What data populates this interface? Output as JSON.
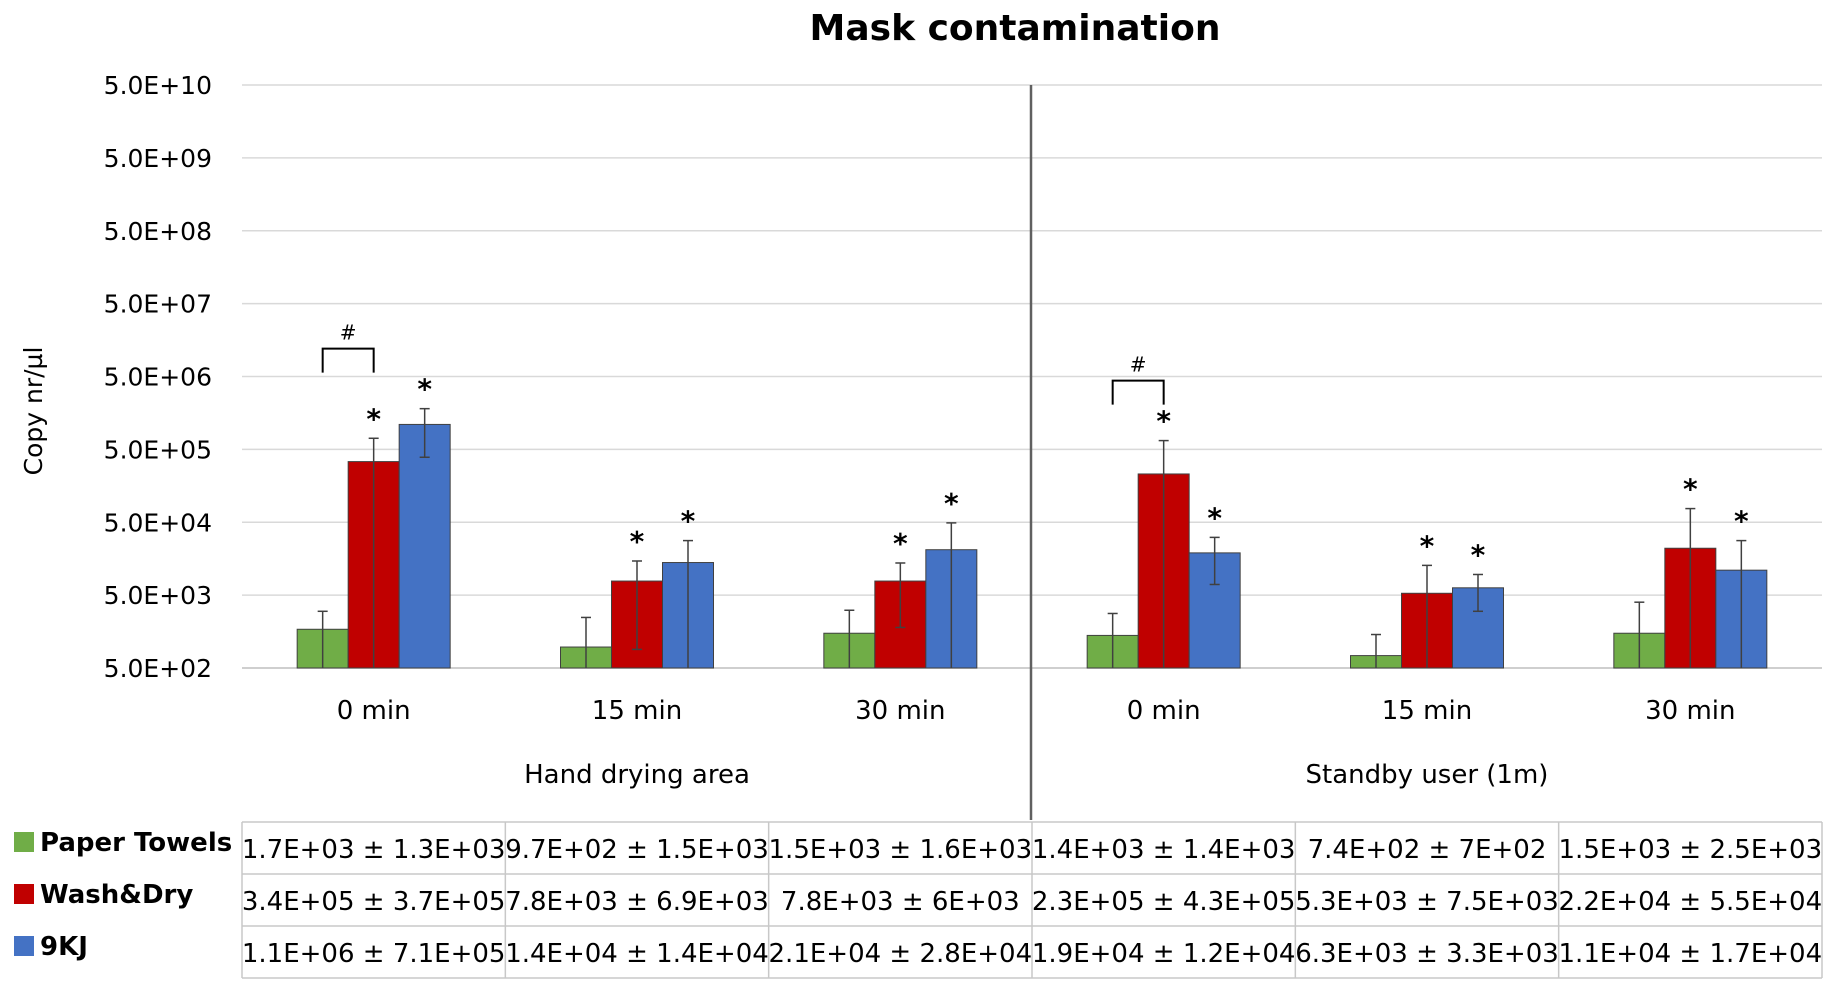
{
  "chart_data": {
    "type": "bar",
    "title": "Mask contamination",
    "ylabel": "Copy nr/µl",
    "xlabel": "",
    "yscale": "log",
    "ylim": [
      500,
      50000000000
    ],
    "yticks": [
      500,
      5000,
      50000,
      500000,
      5000000,
      50000000,
      500000000,
      5000000000,
      50000000000
    ],
    "ytick_labels": [
      "5.0E+02",
      "5.0E+03",
      "5.0E+04",
      "5.0E+05",
      "5.0E+06",
      "5.0E+07",
      "5.0E+08",
      "5.0E+09",
      "5.0E+10"
    ],
    "groups": [
      {
        "label": "Hand drying area",
        "categories": [
          "0 min",
          "15 min",
          "30 min"
        ]
      },
      {
        "label": "Standby user (1m)",
        "categories": [
          "0 min",
          "15 min",
          "30 min"
        ]
      }
    ],
    "series": [
      {
        "name": "Paper Towels",
        "color": "#70AD47",
        "values": [
          1700,
          970,
          1500,
          1400,
          740,
          1500
        ],
        "errors": [
          1300,
          1500,
          1600,
          1400,
          700,
          2500
        ],
        "table_text": [
          "1.7E+03 ± 1.3E+03",
          "9.7E+02 ± 1.5E+03",
          "1.5E+03 ± 1.6E+03",
          "1.4E+03 ± 1.4E+03",
          "7.4E+02 ± 7E+02",
          "1.5E+03 ± 2.5E+03"
        ],
        "significant": [
          false,
          false,
          false,
          false,
          false,
          false
        ]
      },
      {
        "name": "Wash&Dry",
        "color": "#C00000",
        "values": [
          340000,
          7800,
          7800,
          230000,
          5300,
          22000
        ],
        "errors": [
          370000,
          6900,
          6000,
          430000,
          7500,
          55000
        ],
        "table_text": [
          "3.4E+05 ± 3.7E+05",
          "7.8E+03 ± 6.9E+03",
          "7.8E+03 ± 6E+03",
          "2.3E+05 ± 4.3E+05",
          "5.3E+03 ± 7.5E+03",
          "2.2E+04 ± 5.5E+04"
        ],
        "significant": [
          true,
          true,
          true,
          true,
          true,
          true
        ]
      },
      {
        "name": "9KJ",
        "color": "#4472C4",
        "values": [
          1100000,
          14000,
          21000,
          19000,
          6300,
          11000
        ],
        "errors": [
          710000,
          14000,
          28000,
          12000,
          3300,
          17000
        ],
        "table_text": [
          "1.1E+06 ± 7.1E+05",
          "1.4E+04 ± 1.4E+04",
          "2.1E+04 ± 2.8E+04",
          "1.9E+04 ± 1.2E+04",
          "6.3E+03 ± 3.3E+03",
          "1.1E+04 ± 1.7E+04"
        ],
        "significant": [
          true,
          true,
          true,
          true,
          true,
          true
        ]
      }
    ],
    "significance_symbol": "*",
    "brackets": [
      {
        "category_index": 0,
        "symbol": "#"
      },
      {
        "category_index": 3,
        "symbol": "#"
      }
    ],
    "grid": true,
    "legend": "bottom-left (data table)"
  }
}
